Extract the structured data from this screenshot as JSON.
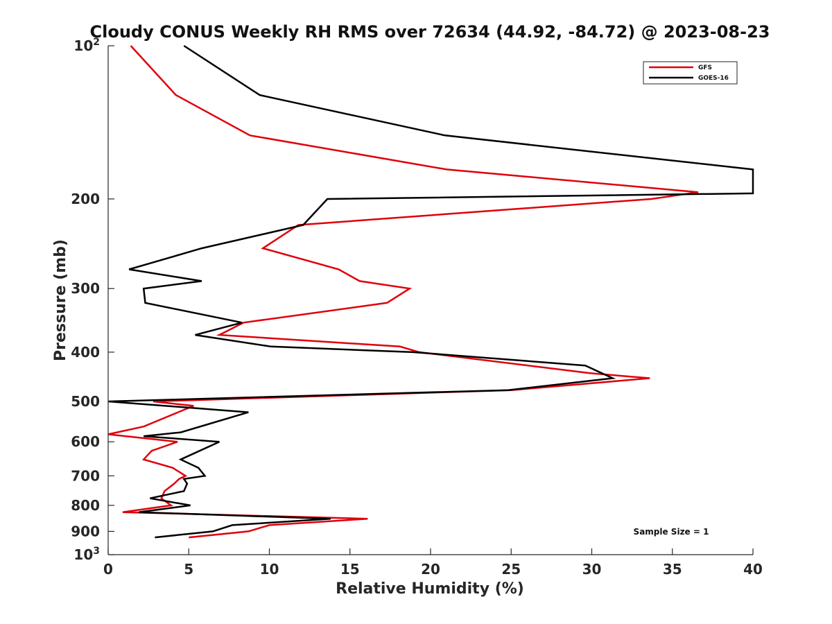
{
  "chart_data": {
    "type": "line",
    "title": "Cloudy CONUS Weekly RH RMS over 72634 (44.92, -84.72) @ 2023-08-23",
    "xlabel": "Relative Humidity (%)",
    "ylabel": "Pressure (mb)",
    "xlim": [
      0,
      40
    ],
    "ylim": [
      100,
      1000
    ],
    "y_scale": "log",
    "y_reversed": true,
    "x_ticks": [
      0,
      5,
      10,
      15,
      20,
      25,
      30,
      35,
      40
    ],
    "y_ticks": [
      {
        "value": 100,
        "base": "10",
        "exp": "2"
      },
      {
        "value": 200,
        "label": "200"
      },
      {
        "value": 300,
        "label": "300"
      },
      {
        "value": 400,
        "label": "400"
      },
      {
        "value": 500,
        "label": "500"
      },
      {
        "value": 600,
        "label": "600"
      },
      {
        "value": 700,
        "label": "700"
      },
      {
        "value": 800,
        "label": "800"
      },
      {
        "value": 900,
        "label": "900"
      },
      {
        "value": 1000,
        "base": "10",
        "exp": "3"
      }
    ],
    "grid": false,
    "legend_position": "top-right",
    "annotation": "Sample Size = 1",
    "series": [
      {
        "name": "GFS",
        "color": "#e0000b",
        "points": [
          [
            1.4,
            100
          ],
          [
            4.2,
            125
          ],
          [
            8.8,
            150
          ],
          [
            21.0,
            175
          ],
          [
            36.6,
            194
          ],
          [
            33.7,
            200
          ],
          [
            11.8,
            225
          ],
          [
            9.6,
            250
          ],
          [
            14.3,
            275
          ],
          [
            15.6,
            290
          ],
          [
            18.7,
            300
          ],
          [
            17.3,
            320
          ],
          [
            8.4,
            350
          ],
          [
            6.9,
            370
          ],
          [
            18.1,
            390
          ],
          [
            19.3,
            400
          ],
          [
            29.9,
            440
          ],
          [
            33.6,
            450
          ],
          [
            25.0,
            475
          ],
          [
            2.8,
            500
          ],
          [
            5.3,
            510
          ],
          [
            3.4,
            540
          ],
          [
            2.2,
            560
          ],
          [
            0,
            580
          ],
          [
            4.3,
            600
          ],
          [
            2.7,
            625
          ],
          [
            2.2,
            650
          ],
          [
            4.0,
            675
          ],
          [
            4.8,
            700
          ],
          [
            4.4,
            710
          ],
          [
            4.1,
            725
          ],
          [
            3.5,
            750
          ],
          [
            3.3,
            775
          ],
          [
            3.9,
            800
          ],
          [
            0.9,
            825
          ],
          [
            16.1,
            850
          ],
          [
            10.0,
            875
          ],
          [
            8.7,
            900
          ],
          [
            5.0,
            925
          ]
        ]
      },
      {
        "name": "GOES-16",
        "color": "#000000",
        "points": [
          [
            4.7,
            100
          ],
          [
            9.4,
            125
          ],
          [
            20.9,
            150
          ],
          [
            40,
            175
          ],
          [
            40,
            195
          ],
          [
            13.6,
            200
          ],
          [
            12.1,
            225
          ],
          [
            5.8,
            250
          ],
          [
            1.3,
            275
          ],
          [
            5.8,
            290
          ],
          [
            2.2,
            300
          ],
          [
            2.3,
            320
          ],
          [
            8.3,
            350
          ],
          [
            5.4,
            370
          ],
          [
            10.1,
            390
          ],
          [
            18.9,
            400
          ],
          [
            29.6,
            425
          ],
          [
            31.3,
            450
          ],
          [
            24.8,
            475
          ],
          [
            0,
            500
          ],
          [
            8.7,
            525
          ],
          [
            4.5,
            575
          ],
          [
            2.2,
            585
          ],
          [
            6.9,
            600
          ],
          [
            4.5,
            650
          ],
          [
            5.6,
            675
          ],
          [
            6.0,
            700
          ],
          [
            4.7,
            710
          ],
          [
            4.9,
            725
          ],
          [
            4.7,
            750
          ],
          [
            2.6,
            775
          ],
          [
            5.1,
            800
          ],
          [
            1.9,
            825
          ],
          [
            13.8,
            850
          ],
          [
            7.7,
            875
          ],
          [
            6.5,
            900
          ],
          [
            2.9,
            925
          ]
        ]
      }
    ]
  }
}
